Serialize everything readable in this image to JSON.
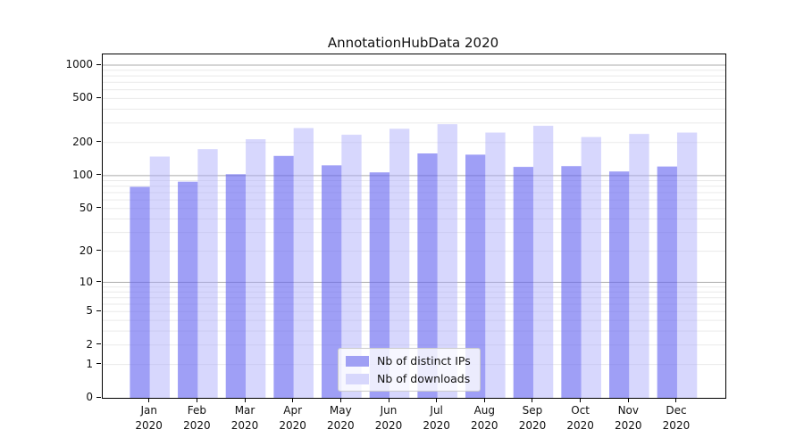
{
  "title": "AnnotationHubData 2020",
  "chart_data": {
    "type": "bar",
    "title": "AnnotationHubData 2020",
    "categories": [
      "Jan",
      "Feb",
      "Mar",
      "Apr",
      "May",
      "Jun",
      "Jul",
      "Aug",
      "Sep",
      "Oct",
      "Nov",
      "Dec"
    ],
    "year_label": "2020",
    "series": [
      {
        "name": "Nb of distinct IPs",
        "color": "#9f9ff4",
        "bar_fill": "rgba(100,100,240,0.62)",
        "values": [
          79,
          88,
          103,
          151,
          124,
          107,
          159,
          155,
          120,
          122,
          109,
          121
        ]
      },
      {
        "name": "Nb of downloads",
        "color": "#d7d7fc",
        "bar_fill": "rgba(170,170,250,0.47)",
        "values": [
          149,
          174,
          214,
          270,
          235,
          266,
          293,
          246,
          283,
          224,
          239,
          246
        ]
      }
    ],
    "yscale": "log1p",
    "ylim": [
      0,
      1250
    ],
    "yticks": [
      0,
      1,
      2,
      5,
      10,
      20,
      50,
      100,
      200,
      500,
      1000
    ],
    "grid": {
      "on": true,
      "major_ticks": [
        10,
        100,
        1000
      ],
      "minor_ticks": [
        1,
        2,
        3,
        4,
        5,
        6,
        7,
        8,
        9,
        20,
        30,
        40,
        50,
        60,
        70,
        80,
        90,
        200,
        300,
        400,
        500,
        600,
        700,
        800,
        900
      ],
      "major_color": "#ababab",
      "minor_color": "#eaeaea"
    },
    "legend_position": "lower center inside",
    "xlabel": "",
    "ylabel": ""
  },
  "colors": {
    "background": "#ffffff",
    "spine": "#000000",
    "text": "#111111"
  }
}
